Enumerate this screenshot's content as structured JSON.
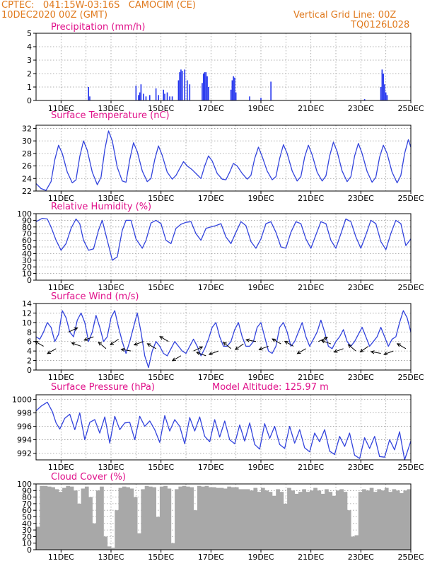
{
  "header": {
    "left_line1": "CPTEC:   041:15W-03:16S   CAMOCIM (CE)",
    "left_line2": "10DEC2020 00Z (GMT)",
    "right_line1": "Vertical Grid Line: 00Z",
    "right_line2": "TQ0126L028"
  },
  "colors": {
    "line": "#3344dd",
    "bar": "#2233ee",
    "cloud": "#a8a8a8",
    "title": "#e0118a",
    "header": "#e07a1e",
    "grid": "#999999"
  },
  "x_ticks": [
    "11DEC",
    "13DEC",
    "15DEC",
    "17DEC",
    "19DEC",
    "21DEC",
    "23DEC",
    "25DEC"
  ],
  "x_tick_days": [
    1,
    3,
    5,
    7,
    9,
    11,
    13,
    15
  ],
  "chart_data": [
    {
      "type": "bar",
      "title": "Precipitation (mm/h)",
      "ylim": [
        0,
        5
      ],
      "yticks": [
        0,
        1,
        2,
        3,
        4,
        5
      ],
      "points": [
        [
          2.1,
          1.0
        ],
        [
          2.15,
          0.3
        ],
        [
          4.0,
          1.1
        ],
        [
          4.1,
          0.4
        ],
        [
          4.15,
          0.6
        ],
        [
          4.2,
          1.2
        ],
        [
          4.3,
          0.5
        ],
        [
          4.4,
          0.3
        ],
        [
          4.55,
          0.4
        ],
        [
          4.8,
          0.9
        ],
        [
          4.9,
          0.4
        ],
        [
          5.1,
          0.8
        ],
        [
          5.15,
          0.5
        ],
        [
          5.25,
          0.6
        ],
        [
          5.35,
          0.3
        ],
        [
          5.45,
          0.3
        ],
        [
          5.7,
          1.5
        ],
        [
          5.75,
          2.1
        ],
        [
          5.8,
          2.3
        ],
        [
          5.85,
          2.2
        ],
        [
          5.95,
          2.3
        ],
        [
          6.05,
          1.5
        ],
        [
          6.15,
          1.2
        ],
        [
          6.65,
          1.3
        ],
        [
          6.7,
          2.0
        ],
        [
          6.75,
          2.1
        ],
        [
          6.8,
          2.1
        ],
        [
          6.85,
          1.8
        ],
        [
          6.9,
          1.0
        ],
        [
          7.8,
          0.8
        ],
        [
          7.85,
          1.5
        ],
        [
          7.9,
          1.8
        ],
        [
          7.95,
          1.7
        ],
        [
          8.0,
          0.6
        ],
        [
          8.55,
          0.3
        ],
        [
          9.0,
          0.2
        ],
        [
          9.4,
          1.4
        ],
        [
          13.15,
          0.1
        ],
        [
          13.8,
          1.0
        ],
        [
          13.85,
          2.3
        ],
        [
          13.9,
          2.0
        ],
        [
          13.95,
          1.2
        ],
        [
          14.0,
          0.6
        ],
        [
          14.05,
          0.4
        ]
      ]
    },
    {
      "type": "line",
      "title": "Surface Temperature (nC)",
      "ylim": [
        22,
        32.5
      ],
      "yticks": [
        22,
        24,
        26,
        28,
        30,
        32
      ],
      "x": [
        0,
        0.2,
        0.4,
        0.6,
        0.75,
        0.9,
        1.05,
        1.25,
        1.45,
        1.6,
        1.75,
        1.9,
        2.05,
        2.25,
        2.45,
        2.6,
        2.75,
        2.9,
        3.05,
        3.25,
        3.45,
        3.6,
        3.75,
        3.9,
        4.05,
        4.25,
        4.45,
        4.6,
        4.75,
        4.9,
        5.05,
        5.25,
        5.45,
        5.6,
        5.75,
        5.9,
        6.05,
        6.25,
        6.45,
        6.6,
        6.75,
        6.9,
        7.05,
        7.25,
        7.45,
        7.6,
        7.75,
        7.9,
        8.05,
        8.25,
        8.45,
        8.6,
        8.75,
        8.9,
        9.05,
        9.25,
        9.45,
        9.6,
        9.75,
        9.9,
        10.05,
        10.25,
        10.45,
        10.6,
        10.75,
        10.9,
        11.05,
        11.25,
        11.45,
        11.6,
        11.75,
        11.9,
        12.05,
        12.25,
        12.45,
        12.6,
        12.75,
        12.9,
        13.05,
        13.25,
        13.45,
        13.6,
        13.75,
        13.9,
        14.05,
        14.25,
        14.45,
        14.6,
        14.75,
        14.9,
        15
      ],
      "y": [
        23.2,
        22.4,
        22.1,
        23.5,
        27.0,
        29.3,
        28.0,
        25.0,
        23.3,
        23.8,
        27.5,
        30.0,
        28.5,
        25.0,
        23.0,
        24.2,
        28.6,
        31.6,
        30.0,
        25.8,
        23.6,
        23.4,
        27.0,
        29.7,
        28.3,
        25.2,
        23.5,
        24.0,
        27.0,
        29.2,
        27.7,
        25.0,
        23.9,
        24.5,
        25.6,
        26.7,
        26.0,
        25.4,
        24.6,
        24.0,
        26.0,
        27.6,
        26.8,
        24.8,
        23.9,
        23.8,
        25.0,
        26.4,
        26.0,
        24.8,
        23.9,
        24.5,
        27.2,
        29.0,
        27.5,
        25.2,
        23.8,
        24.3,
        27.2,
        29.4,
        28.0,
        25.2,
        23.6,
        24.3,
        27.4,
        29.3,
        27.8,
        25.0,
        23.6,
        24.4,
        27.6,
        29.8,
        28.3,
        25.2,
        23.5,
        24.3,
        27.6,
        29.6,
        28.0,
        25.1,
        23.4,
        24.2,
        27.4,
        29.3,
        28.0,
        25.0,
        23.3,
        24.5,
        28.0,
        30.2,
        29.0
      ]
    },
    {
      "type": "line",
      "title": "Relative Humidity (%)",
      "ylim": [
        0,
        100
      ],
      "yticks": [
        0,
        10,
        20,
        30,
        40,
        50,
        60,
        70,
        80,
        90,
        100
      ],
      "x": [
        0,
        0.25,
        0.45,
        0.6,
        0.8,
        1.0,
        1.2,
        1.4,
        1.6,
        1.75,
        1.9,
        2.1,
        2.3,
        2.5,
        2.65,
        2.85,
        3.05,
        3.25,
        3.45,
        3.6,
        3.8,
        4.0,
        4.25,
        4.4,
        4.6,
        4.8,
        5.0,
        5.2,
        5.4,
        5.6,
        5.8,
        6.0,
        6.2,
        6.4,
        6.6,
        6.8,
        7.0,
        7.2,
        7.4,
        7.6,
        7.8,
        8.0,
        8.2,
        8.4,
        8.6,
        8.8,
        9.0,
        9.2,
        9.4,
        9.6,
        9.8,
        10.0,
        10.2,
        10.4,
        10.6,
        10.8,
        11.0,
        11.2,
        11.4,
        11.6,
        11.8,
        12.0,
        12.2,
        12.4,
        12.6,
        12.8,
        13.0,
        13.2,
        13.4,
        13.6,
        13.8,
        14.0,
        14.2,
        14.4,
        14.6,
        14.8,
        15
      ],
      "y": [
        88,
        93,
        92,
        80,
        60,
        45,
        55,
        78,
        92,
        85,
        60,
        45,
        47,
        75,
        90,
        60,
        30,
        35,
        75,
        90,
        90,
        62,
        48,
        60,
        86,
        90,
        85,
        60,
        55,
        78,
        84,
        87,
        88,
        70,
        60,
        78,
        80,
        82,
        85,
        65,
        55,
        72,
        88,
        82,
        58,
        48,
        62,
        85,
        88,
        72,
        50,
        48,
        72,
        88,
        85,
        62,
        48,
        68,
        88,
        85,
        60,
        48,
        70,
        92,
        88,
        65,
        48,
        68,
        90,
        85,
        58,
        46,
        70,
        90,
        85,
        52,
        62
      ]
    },
    {
      "type": "line",
      "title": "Surface Wind (m/s)",
      "ylim": [
        0,
        14
      ],
      "yticks": [
        0,
        2,
        4,
        6,
        8,
        10,
        12,
        14
      ],
      "x": [
        0,
        0.15,
        0.3,
        0.45,
        0.6,
        0.75,
        0.9,
        1.05,
        1.2,
        1.35,
        1.5,
        1.65,
        1.8,
        1.95,
        2.1,
        2.25,
        2.4,
        2.55,
        2.7,
        2.85,
        3.0,
        3.15,
        3.3,
        3.45,
        3.6,
        3.75,
        3.9,
        4.05,
        4.2,
        4.35,
        4.5,
        4.65,
        4.8,
        4.95,
        5.1,
        5.25,
        5.4,
        5.55,
        5.7,
        5.85,
        6.0,
        6.15,
        6.3,
        6.45,
        6.6,
        6.75,
        6.9,
        7.05,
        7.2,
        7.35,
        7.5,
        7.65,
        7.8,
        7.95,
        8.1,
        8.25,
        8.4,
        8.55,
        8.7,
        8.85,
        9.0,
        9.15,
        9.3,
        9.45,
        9.6,
        9.75,
        9.9,
        10.05,
        10.2,
        10.35,
        10.5,
        10.65,
        10.8,
        10.95,
        11.1,
        11.25,
        11.4,
        11.55,
        11.7,
        11.85,
        12.0,
        12.15,
        12.3,
        12.45,
        12.6,
        12.75,
        12.9,
        13.05,
        13.2,
        13.35,
        13.5,
        13.65,
        13.8,
        13.95,
        14.1,
        14.25,
        14.4,
        14.55,
        14.7,
        14.85,
        15
      ],
      "y": [
        7,
        6.5,
        8,
        10,
        9,
        6,
        7.5,
        12.5,
        11,
        8,
        7,
        10.5,
        12,
        10,
        6,
        8,
        11.5,
        9,
        6,
        7,
        11,
        12.5,
        9,
        6,
        3.5,
        6,
        9,
        12,
        8,
        3,
        0.5,
        4,
        6,
        5,
        3.5,
        3,
        4.5,
        6,
        5,
        4,
        3.5,
        5,
        6.5,
        5,
        3,
        4.5,
        6.5,
        9,
        10,
        7,
        5,
        5,
        6,
        8.5,
        10,
        7,
        5,
        5,
        6,
        9,
        10,
        7,
        4,
        3.5,
        5,
        9,
        10,
        8,
        5,
        6,
        8,
        10,
        7,
        5,
        6.5,
        8,
        10.5,
        8,
        5,
        4.5,
        6,
        7,
        8.5,
        6,
        5,
        6,
        7.5,
        9,
        7,
        5,
        6,
        7,
        9,
        7,
        5,
        6.5,
        7,
        10,
        12.5,
        11,
        8
      ],
      "barbs": [
        [
          0.3,
          3.5
        ],
        [
          0.8,
          3.0
        ],
        [
          1.3,
          6.5
        ],
        [
          1.8,
          3.5
        ],
        [
          2.3,
          5.5
        ],
        [
          2.8,
          3.0
        ],
        [
          3.3,
          5.0
        ],
        [
          3.8,
          2.5
        ],
        [
          4.3,
          4.5
        ],
        [
          4.8,
          3.0
        ],
        [
          5.3,
          4.5
        ],
        [
          5.8,
          1.5
        ],
        [
          6.3,
          2.5
        ],
        [
          6.8,
          1.5
        ],
        [
          7.3,
          2.5
        ],
        [
          7.8,
          3.0
        ],
        [
          8.3,
          4.0
        ],
        [
          8.8,
          4.5
        ],
        [
          9.3,
          3.5
        ],
        [
          9.8,
          4.0
        ],
        [
          10.3,
          3.5
        ],
        [
          10.8,
          3.0
        ],
        [
          11.3,
          4.5
        ],
        [
          11.8,
          4.0
        ],
        [
          12.3,
          3.0
        ],
        [
          12.8,
          2.5
        ],
        [
          13.3,
          3.5
        ],
        [
          13.8,
          2.0
        ],
        [
          14.3,
          2.5
        ],
        [
          14.8,
          3.0
        ]
      ]
    },
    {
      "type": "line",
      "title": "Surface Pressure (hPa)",
      "subtitle": "Model Altitude: 125.97 m",
      "ylim": [
        991,
        1000.7
      ],
      "yticks": [
        992,
        994,
        996,
        998,
        1000
      ],
      "x": [
        0,
        0.2,
        0.45,
        0.65,
        0.8,
        0.95,
        1.15,
        1.35,
        1.55,
        1.75,
        1.95,
        2.15,
        2.35,
        2.55,
        2.75,
        2.95,
        3.15,
        3.35,
        3.55,
        3.75,
        3.95,
        4.15,
        4.35,
        4.55,
        4.75,
        4.95,
        5.15,
        5.35,
        5.55,
        5.75,
        5.95,
        6.15,
        6.35,
        6.55,
        6.75,
        6.95,
        7.15,
        7.35,
        7.55,
        7.75,
        7.95,
        8.15,
        8.35,
        8.55,
        8.75,
        8.95,
        9.15,
        9.35,
        9.55,
        9.75,
        9.95,
        10.15,
        10.35,
        10.55,
        10.75,
        10.95,
        11.15,
        11.35,
        11.55,
        11.75,
        11.95,
        12.15,
        12.35,
        12.55,
        12.75,
        12.95,
        13.15,
        13.35,
        13.55,
        13.75,
        13.95,
        14.15,
        14.35,
        14.55,
        14.75,
        15
      ],
      "y": [
        998.3,
        999.0,
        999.6,
        998.2,
        996.5,
        995.6,
        997.2,
        997.8,
        995.5,
        998.0,
        994.0,
        996.6,
        997.0,
        995.0,
        997.4,
        993.5,
        997.5,
        995.5,
        996.5,
        996.6,
        994.0,
        997.5,
        996.0,
        996.8,
        995.5,
        993.6,
        997.6,
        995.3,
        997.0,
        996.0,
        993.4,
        997.3,
        995.3,
        997.4,
        994.5,
        993.7,
        997.0,
        994.4,
        996.8,
        994.0,
        993.4,
        996.2,
        993.8,
        996.5,
        993.3,
        992.6,
        996.4,
        994.2,
        996.0,
        993.3,
        992.7,
        996.0,
        993.5,
        995.5,
        992.8,
        992.2,
        995.0,
        993.7,
        995.5,
        992.3,
        991.8,
        994.5,
        993.0,
        995.0,
        991.7,
        991.2,
        994.3,
        992.7,
        994.5,
        991.5,
        991.4,
        994.0,
        992.5,
        995.2,
        991.0,
        993.8
      ]
    },
    {
      "type": "bar",
      "title": "Cloud Cover (%)",
      "ylim": [
        0,
        100
      ],
      "yticks": [
        0,
        10,
        20,
        30,
        40,
        50,
        60,
        70,
        80,
        90,
        100
      ],
      "x": [
        0,
        0.15,
        0.3,
        0.45,
        0.6,
        0.75,
        0.9,
        1.05,
        1.2,
        1.35,
        1.5,
        1.65,
        1.8,
        1.95,
        2.1,
        2.25,
        2.4,
        2.55,
        2.7,
        2.85,
        3.0,
        3.15,
        3.3,
        3.45,
        3.6,
        3.75,
        3.9,
        4.05,
        4.2,
        4.35,
        4.5,
        4.65,
        4.8,
        4.95,
        5.1,
        5.25,
        5.4,
        5.55,
        5.7,
        5.85,
        6.0,
        6.15,
        6.3,
        6.45,
        6.6,
        6.75,
        6.9,
        7.05,
        7.2,
        7.35,
        7.5,
        7.65,
        7.8,
        7.95,
        8.1,
        8.25,
        8.4,
        8.55,
        8.7,
        8.85,
        9.0,
        9.15,
        9.3,
        9.45,
        9.6,
        9.75,
        9.9,
        10.05,
        10.2,
        10.35,
        10.5,
        10.65,
        10.8,
        10.95,
        11.1,
        11.25,
        11.4,
        11.55,
        11.7,
        11.85,
        12.0,
        12.15,
        12.3,
        12.45,
        12.6,
        12.75,
        12.9,
        13.05,
        13.2,
        13.35,
        13.5,
        13.65,
        13.8,
        13.95,
        14.1,
        14.25,
        14.4,
        14.55,
        14.7,
        14.85
      ],
      "values": [
        35,
        97,
        97,
        96,
        95,
        92,
        88,
        94,
        97,
        96,
        90,
        70,
        93,
        96,
        80,
        40,
        90,
        96,
        20,
        5,
        3,
        60,
        94,
        96,
        95,
        93,
        80,
        25,
        92,
        97,
        96,
        95,
        50,
        96,
        97,
        93,
        10,
        92,
        96,
        97,
        96,
        95,
        60,
        97,
        96,
        97,
        95,
        95,
        94,
        94,
        93,
        96,
        95,
        95,
        92,
        92,
        92,
        90,
        94,
        88,
        94,
        90,
        88,
        82,
        92,
        88,
        70,
        94,
        90,
        85,
        88,
        92,
        88,
        90,
        94,
        90,
        85,
        92,
        88,
        82,
        90,
        92,
        88,
        60,
        20,
        22,
        88,
        92,
        90,
        94,
        88,
        92,
        90,
        94,
        88,
        92,
        90,
        86,
        90,
        92
      ]
    }
  ]
}
